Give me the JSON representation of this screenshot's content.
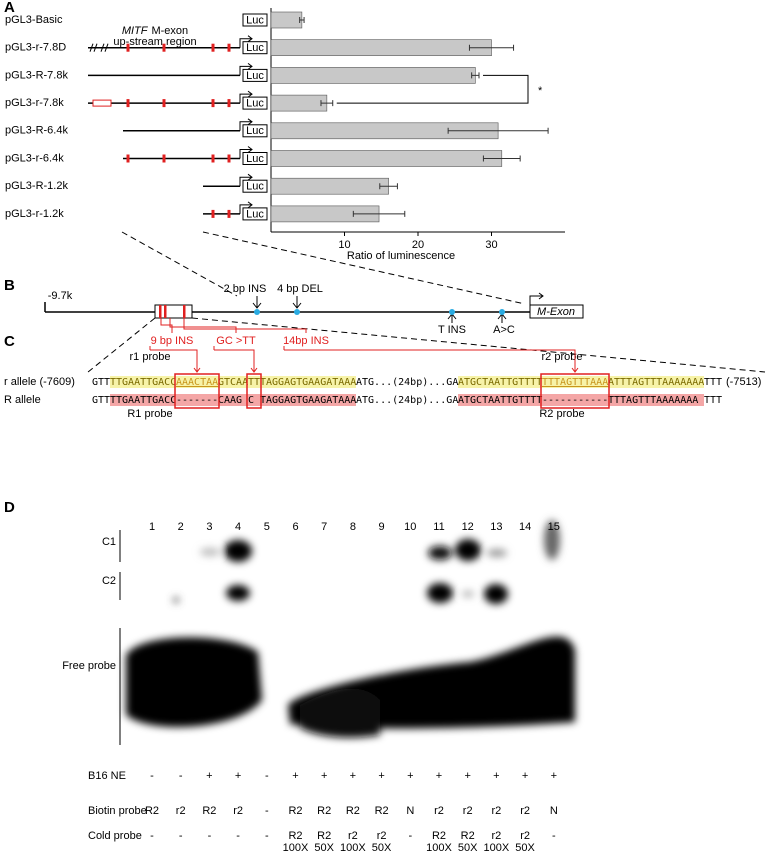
{
  "chart_data": {
    "type": "bar",
    "horizontal": true,
    "panel_label": "A",
    "categories": [
      "pGL3-Basic",
      "pGL3-r-7.8D",
      "pGL3-R-7.8k",
      "pGL3-r-7.8k",
      "pGL3-R-6.4k",
      "pGL3-r-6.4k",
      "pGL3-R-1.2k",
      "pGL3-r-1.2k"
    ],
    "values": [
      4.2,
      30,
      27.8,
      7.6,
      30.9,
      31.4,
      16,
      14.7
    ],
    "errors": [
      0.3,
      3,
      0.5,
      0.8,
      6.8,
      2.5,
      1.2,
      3.5
    ],
    "color": "#c8c8c8",
    "xlim": [
      0,
      40
    ],
    "xticks": [
      10,
      20,
      30
    ],
    "xlabel": "Ratio of luminescence",
    "reporter": "Luc",
    "region_gene": "MITF",
    "region_exon": "M-exon",
    "region_line2": "up-stream region",
    "significance": "*"
  },
  "panel_b": {
    "label": "B",
    "start": "-9.7k",
    "variants": [
      "2 bp INS",
      "4 bp DEL",
      "T INS",
      "A>C"
    ],
    "exon": "M-Exon"
  },
  "panel_c": {
    "label": "C",
    "mutations": [
      "9 bp INS",
      "GC >TT",
      "14bp INS"
    ],
    "probes_top": [
      "r1 probe",
      "r2 probe"
    ],
    "probes_bottom": [
      "R1 probe",
      "R2 probe"
    ],
    "r_allele": {
      "name": "r allele (-7609)",
      "end": "(-7513)",
      "pieces": [
        "GTT",
        "TTGAATTGACC",
        "AAACTAA",
        "GTCAA",
        "TT",
        "TAGGAGTGAAGATAAA",
        "ATG...(24bp)...GA",
        "ATGCTAATTGTTTT",
        "TTTAGTTTAAA",
        "ATTTAGTTTAAAAAAA",
        "TTT"
      ]
    },
    "R_allele": {
      "name": "R allele",
      "pieces": [
        "GTT",
        "TTGAATTGACC",
        "-------",
        "CAAG",
        "C",
        "TAGGAGTGAAGATAAA",
        "ATG...(24bp)...GA",
        "ATGCTAATTGTTTT",
        "-----------",
        "TTTAGTTTAAAAAAA",
        "TTT"
      ]
    }
  },
  "panel_d": {
    "label": "D",
    "lanes": [
      "1",
      "2",
      "3",
      "4",
      "5",
      "6",
      "7",
      "8",
      "9",
      "10",
      "11",
      "12",
      "13",
      "14",
      "15"
    ],
    "bands": [
      "C1",
      "C2",
      "Free probe"
    ],
    "rows": [
      {
        "name": "B16 NE",
        "cells": [
          "-",
          "-",
          "+",
          "+",
          "-",
          "+",
          "+",
          "+",
          "+",
          "+",
          "+",
          "+",
          "+",
          "+",
          "+"
        ]
      },
      {
        "name": "Biotin probe",
        "cells": [
          "R2",
          "r2",
          "R2",
          "r2",
          "-",
          "R2",
          "R2",
          "R2",
          "R2",
          "N",
          "r2",
          "r2",
          "r2",
          "r2",
          "N"
        ]
      },
      {
        "name": "Cold probe",
        "cells": [
          "-",
          "-",
          "-",
          "-",
          "-",
          [
            "R2",
            "100X"
          ],
          [
            "R2",
            "50X"
          ],
          [
            "r2",
            "100X"
          ],
          [
            "r2",
            "50X"
          ],
          "-",
          [
            "R2",
            "100X"
          ],
          [
            "R2",
            "50X"
          ],
          [
            "r2",
            "100X"
          ],
          [
            "r2",
            "50X"
          ],
          "-"
        ]
      }
    ]
  }
}
